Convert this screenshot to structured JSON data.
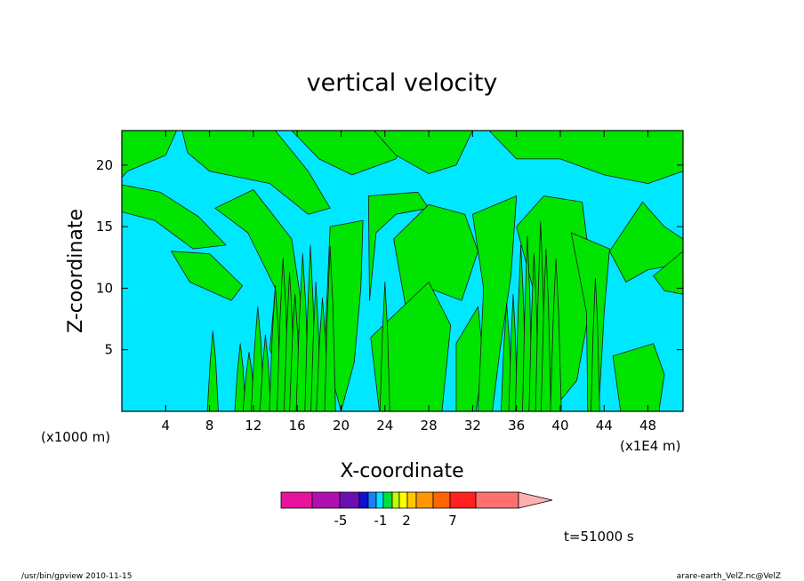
{
  "chart_data": {
    "type": "heatmap",
    "title": "vertical velocity",
    "xlabel": "X-coordinate",
    "ylabel": "Z-coordinate",
    "x_unit_left": "(x1000 m)",
    "x_unit_right": "(x1E4 m)",
    "x_ticks": [
      "4",
      "8",
      "12",
      "16",
      "20",
      "24",
      "28",
      "32",
      "36",
      "40",
      "44",
      "48"
    ],
    "y_ticks": [
      "5",
      "10",
      "15",
      "20"
    ],
    "xlim": [
      0,
      51.2
    ],
    "ylim": [
      0,
      22.8
    ],
    "colorbar": {
      "labels": [
        "-5",
        "-1",
        "2",
        "7"
      ],
      "colors": [
        "#e8129c",
        "#b010b0",
        "#6a10b0",
        "#1010d0",
        "#1a7fff",
        "#00e4ff",
        "#00e040",
        "#c0ff00",
        "#ffff00",
        "#ffc800",
        "#ff9600",
        "#ff6400",
        "#ff2020",
        "#ff7070",
        "#ffb0b0"
      ]
    },
    "field_colors": {
      "negative": "#00e8ff",
      "positive": "#00e400",
      "contour": "#1a1a1a"
    },
    "time_label": "t=51000 s",
    "footer_left": "/usr/bin/gpview   2010-11-15",
    "footer_right": "arare-earth_VelZ.nc@VelZ"
  }
}
